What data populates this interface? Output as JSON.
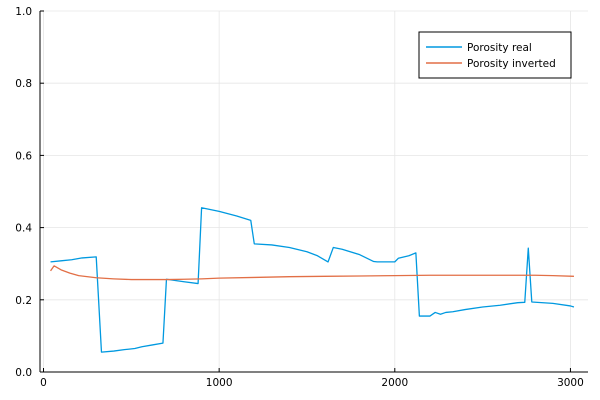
{
  "chart_data": {
    "type": "line",
    "title": "",
    "xlabel": "",
    "ylabel": "",
    "xlim": [
      -20,
      3100
    ],
    "ylim": [
      0,
      1
    ],
    "grid": true,
    "legend_position": "top-right",
    "x_ticks": [
      {
        "value": 0,
        "label": "0"
      },
      {
        "value": 1000,
        "label": "1000"
      },
      {
        "value": 2000,
        "label": "2000"
      },
      {
        "value": 3000,
        "label": "3000"
      }
    ],
    "y_ticks": [
      {
        "value": 0,
        "label": "0.0"
      },
      {
        "value": 0.2,
        "label": "0.2"
      },
      {
        "value": 0.4,
        "label": "0.4"
      },
      {
        "value": 0.6,
        "label": "0.6"
      },
      {
        "value": 0.8,
        "label": "0.8"
      },
      {
        "value": 1.0,
        "label": "1.0"
      }
    ],
    "series": [
      {
        "name": "Porosity real",
        "color": "#0099e0",
        "points": [
          [
            40,
            0.305
          ],
          [
            100,
            0.308
          ],
          [
            160,
            0.311
          ],
          [
            220,
            0.316
          ],
          [
            300,
            0.319
          ],
          [
            330,
            0.055
          ],
          [
            400,
            0.058
          ],
          [
            460,
            0.062
          ],
          [
            520,
            0.065
          ],
          [
            560,
            0.07
          ],
          [
            620,
            0.075
          ],
          [
            680,
            0.08
          ],
          [
            700,
            0.257
          ],
          [
            800,
            0.25
          ],
          [
            880,
            0.245
          ],
          [
            900,
            0.455
          ],
          [
            1000,
            0.445
          ],
          [
            1100,
            0.432
          ],
          [
            1180,
            0.42
          ],
          [
            1200,
            0.355
          ],
          [
            1300,
            0.352
          ],
          [
            1400,
            0.345
          ],
          [
            1500,
            0.333
          ],
          [
            1560,
            0.322
          ],
          [
            1620,
            0.305
          ],
          [
            1650,
            0.345
          ],
          [
            1700,
            0.34
          ],
          [
            1800,
            0.325
          ],
          [
            1880,
            0.306
          ],
          [
            1900,
            0.305
          ],
          [
            1950,
            0.305
          ],
          [
            2000,
            0.305
          ],
          [
            2020,
            0.315
          ],
          [
            2080,
            0.322
          ],
          [
            2120,
            0.33
          ],
          [
            2140,
            0.155
          ],
          [
            2200,
            0.155
          ],
          [
            2230,
            0.165
          ],
          [
            2260,
            0.16
          ],
          [
            2290,
            0.165
          ],
          [
            2330,
            0.167
          ],
          [
            2400,
            0.173
          ],
          [
            2500,
            0.18
          ],
          [
            2600,
            0.185
          ],
          [
            2700,
            0.192
          ],
          [
            2740,
            0.193
          ],
          [
            2760,
            0.343
          ],
          [
            2780,
            0.194
          ],
          [
            2900,
            0.19
          ],
          [
            3000,
            0.183
          ],
          [
            3020,
            0.18
          ]
        ]
      },
      {
        "name": "Porosity inverted",
        "color": "#e26f46",
        "points": [
          [
            40,
            0.28
          ],
          [
            60,
            0.294
          ],
          [
            100,
            0.283
          ],
          [
            150,
            0.274
          ],
          [
            200,
            0.267
          ],
          [
            300,
            0.261
          ],
          [
            400,
            0.258
          ],
          [
            500,
            0.256
          ],
          [
            600,
            0.256
          ],
          [
            700,
            0.256
          ],
          [
            800,
            0.257
          ],
          [
            900,
            0.258
          ],
          [
            1000,
            0.26
          ],
          [
            1200,
            0.262
          ],
          [
            1400,
            0.264
          ],
          [
            1600,
            0.265
          ],
          [
            1800,
            0.266
          ],
          [
            2000,
            0.267
          ],
          [
            2200,
            0.268
          ],
          [
            2400,
            0.268
          ],
          [
            2600,
            0.268
          ],
          [
            2800,
            0.268
          ],
          [
            2900,
            0.267
          ],
          [
            3020,
            0.265
          ]
        ]
      }
    ]
  }
}
